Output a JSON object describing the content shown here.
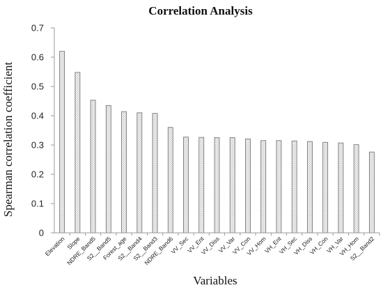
{
  "chart_data": {
    "type": "bar",
    "title": "Correlation Analysis",
    "xlabel": "Variables",
    "ylabel": "Spearman correlation coefficient",
    "ylim": [
      0,
      0.7
    ],
    "yticks": [
      "0",
      "0.1",
      "0.2",
      "0.3",
      "0.4",
      "0.5",
      "0.6",
      "0.7"
    ],
    "grid": false,
    "categories": [
      "Elevation",
      "Slope",
      "NDRE_Band5",
      "S2__Band5",
      "Forest_age",
      "S2__Band4",
      "S2__Band3",
      "NDRE_Band6",
      "VV_Sec",
      "VV_Ent",
      "VV_Diss",
      "VV_Var",
      "VV_Con",
      "VV_Hom",
      "VH_Ent",
      "VH_Sec",
      "VH_Diss",
      "VH_Con",
      "VH_Var",
      "VH_Hom",
      "S2__Band2"
    ],
    "values": [
      0.62,
      0.548,
      0.453,
      0.435,
      0.414,
      0.41,
      0.408,
      0.36,
      0.327,
      0.326,
      0.325,
      0.325,
      0.321,
      0.315,
      0.315,
      0.314,
      0.312,
      0.309,
      0.307,
      0.301,
      0.276
    ],
    "colors": {
      "bar_fill": "#e4e4e4",
      "bar_stroke": "#6a6a6a",
      "axis": "#9a9a9a"
    }
  }
}
